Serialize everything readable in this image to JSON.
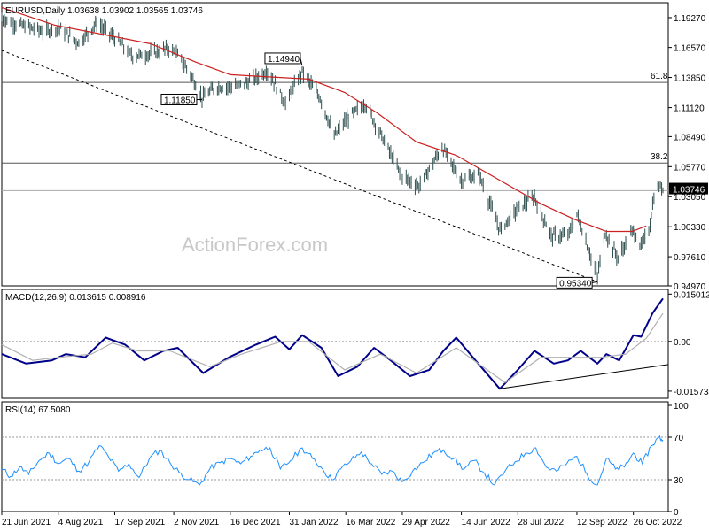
{
  "chart_data": [
    {
      "type": "candlestick",
      "panel": "price",
      "header": "EURUSD,Daily  1.03638 1.03902 1.03565 1.03746",
      "watermark": "ActionForex.com",
      "ylim": [
        0.9497,
        1.2063
      ],
      "y_ticks": [
        "1.19270",
        "1.16570",
        "1.13850",
        "1.11120",
        "1.08490",
        "1.05770",
        "1.03050",
        "1.00330",
        "0.97610",
        "0.94970"
      ],
      "current_price": {
        "label": "1.03746",
        "value": 1.03746
      },
      "levels": [
        {
          "label": "61.8",
          "value": 1.134
        },
        {
          "label": "38.2",
          "value": 1.061
        },
        {
          "label": "",
          "value": 1.036
        }
      ],
      "annotations": [
        {
          "label": "1.14940",
          "date": "2022-02-10",
          "value": 1.1494
        },
        {
          "label": "1.11850",
          "date": "2021-11-24",
          "value": 1.1185
        },
        {
          "label": "0.95340",
          "date": "2022-09-28",
          "value": 0.9534
        }
      ],
      "trendline": {
        "style": "dashed",
        "from": [
          "2021-06-21",
          1.163
        ],
        "to": [
          "2022-09-28",
          0.9534
        ]
      },
      "moving_average_points": [
        [
          "2021-06-21",
          1.202
        ],
        [
          "2021-08-01",
          1.186
        ],
        [
          "2021-09-10",
          1.177
        ],
        [
          "2021-10-15",
          1.169
        ],
        [
          "2021-11-20",
          1.152
        ],
        [
          "2021-12-16",
          1.141
        ],
        [
          "2022-01-15",
          1.139
        ],
        [
          "2022-02-15",
          1.137
        ],
        [
          "2022-03-15",
          1.125
        ],
        [
          "2022-04-10",
          1.106
        ],
        [
          "2022-05-10",
          1.08
        ],
        [
          "2022-06-10",
          1.068
        ],
        [
          "2022-07-10",
          1.048
        ],
        [
          "2022-08-15",
          1.024
        ],
        [
          "2022-09-10",
          1.01
        ],
        [
          "2022-10-05",
          0.999
        ],
        [
          "2022-10-25",
          0.999
        ],
        [
          "2022-11-05",
          1.004
        ]
      ],
      "price_points": [
        [
          "2021-06-21",
          1.192
        ],
        [
          "2021-07-05",
          1.186
        ],
        [
          "2021-07-25",
          1.18
        ],
        [
          "2021-08-04",
          1.184
        ],
        [
          "2021-08-20",
          1.17
        ],
        [
          "2021-09-03",
          1.188
        ],
        [
          "2021-09-17",
          1.174
        ],
        [
          "2021-10-01",
          1.158
        ],
        [
          "2021-10-15",
          1.16
        ],
        [
          "2021-10-29",
          1.165
        ],
        [
          "2021-11-05",
          1.158
        ],
        [
          "2021-11-15",
          1.142
        ],
        [
          "2021-11-24",
          1.12
        ],
        [
          "2021-12-05",
          1.13
        ],
        [
          "2021-12-16",
          1.13
        ],
        [
          "2022-01-01",
          1.135
        ],
        [
          "2022-01-14",
          1.145
        ],
        [
          "2022-01-28",
          1.115
        ],
        [
          "2022-02-10",
          1.144
        ],
        [
          "2022-02-24",
          1.12
        ],
        [
          "2022-03-07",
          1.085
        ],
        [
          "2022-03-16",
          1.1
        ],
        [
          "2022-03-31",
          1.115
        ],
        [
          "2022-04-14",
          1.083
        ],
        [
          "2022-04-28",
          1.05
        ],
        [
          "2022-05-12",
          1.04
        ],
        [
          "2022-05-30",
          1.075
        ],
        [
          "2022-06-14",
          1.045
        ],
        [
          "2022-06-28",
          1.05
        ],
        [
          "2022-07-14",
          1.0
        ],
        [
          "2022-07-28",
          1.02
        ],
        [
          "2022-08-10",
          1.03
        ],
        [
          "2022-08-23",
          0.995
        ],
        [
          "2022-09-05",
          0.995
        ],
        [
          "2022-09-12",
          1.015
        ],
        [
          "2022-09-28",
          0.958
        ],
        [
          "2022-10-04",
          0.998
        ],
        [
          "2022-10-14",
          0.975
        ],
        [
          "2022-10-26",
          1.0
        ],
        [
          "2022-11-01",
          0.985
        ],
        [
          "2022-11-07",
          1.0
        ],
        [
          "2022-11-11",
          1.03
        ],
        [
          "2022-11-15",
          1.04
        ],
        [
          "2022-11-18",
          1.0375
        ]
      ],
      "x_ticks": [
        "21 Jun 2021",
        "4 Aug 2021",
        "17 Sep 2021",
        "2 Nov 2021",
        "16 Dec 2021",
        "31 Jan 2022",
        "16 Mar 2022",
        "29 Apr 2022",
        "14 Jun 2022",
        "28 Jul 2022",
        "12 Sep 2022",
        "26 Oct 2022"
      ],
      "x_tick_dates": [
        "2021-06-21",
        "2021-08-04",
        "2021-09-17",
        "2021-11-02",
        "2021-12-16",
        "2022-01-31",
        "2022-03-16",
        "2022-04-29",
        "2022-06-14",
        "2022-07-28",
        "2022-09-12",
        "2022-10-26"
      ],
      "x_range": [
        "2021-06-21",
        "2022-11-18"
      ]
    },
    {
      "type": "line",
      "panel": "macd",
      "header": "MACD(12,26,9) 0.013615 0.008916",
      "ylim": [
        -0.018,
        0.0165
      ],
      "y_ticks": [
        "0.015012",
        "0.00",
        "-0.015734"
      ],
      "y_tick_values": [
        0.015012,
        0.0,
        -0.015734
      ],
      "zero_line": 0.0,
      "trendline": {
        "from": [
          "2022-07-14",
          -0.015
        ],
        "to": [
          "2022-11-18",
          -0.0073
        ]
      },
      "series": [
        {
          "name": "",
          "role": "macd",
          "points": [
            [
              "2021-06-21",
              -0.004
            ],
            [
              "2021-07-10",
              -0.007
            ],
            [
              "2021-07-30",
              -0.006
            ],
            [
              "2021-08-10",
              -0.004
            ],
            [
              "2021-08-25",
              -0.005
            ],
            [
              "2021-09-10",
              0.0012
            ],
            [
              "2021-09-25",
              -0.001
            ],
            [
              "2021-10-10",
              -0.006
            ],
            [
              "2021-10-25",
              -0.003
            ],
            [
              "2021-11-05",
              -0.002
            ],
            [
              "2021-11-25",
              -0.01
            ],
            [
              "2021-12-15",
              -0.005
            ],
            [
              "2022-01-05",
              -0.001
            ],
            [
              "2022-01-20",
              0.0015
            ],
            [
              "2022-01-31",
              -0.0025
            ],
            [
              "2022-02-10",
              0.002
            ],
            [
              "2022-02-25",
              -0.002
            ],
            [
              "2022-03-10",
              -0.011
            ],
            [
              "2022-03-25",
              -0.008
            ],
            [
              "2022-04-07",
              -0.002
            ],
            [
              "2022-04-20",
              -0.006
            ],
            [
              "2022-05-05",
              -0.011
            ],
            [
              "2022-05-20",
              -0.009
            ],
            [
              "2022-05-31",
              -0.003
            ],
            [
              "2022-06-10",
              0.0012
            ],
            [
              "2022-06-25",
              -0.006
            ],
            [
              "2022-07-14",
              -0.015
            ],
            [
              "2022-07-28",
              -0.009
            ],
            [
              "2022-08-10",
              -0.003
            ],
            [
              "2022-08-25",
              -0.007
            ],
            [
              "2022-09-05",
              -0.006
            ],
            [
              "2022-09-15",
              -0.003
            ],
            [
              "2022-09-28",
              -0.007
            ],
            [
              "2022-10-05",
              -0.004
            ],
            [
              "2022-10-15",
              -0.006
            ],
            [
              "2022-10-26",
              0.002
            ],
            [
              "2022-11-01",
              0.0015
            ],
            [
              "2022-11-10",
              0.009
            ],
            [
              "2022-11-18",
              0.0136
            ]
          ]
        },
        {
          "name": "",
          "role": "signal",
          "points": [
            [
              "2021-06-21",
              -0.001
            ],
            [
              "2021-07-15",
              -0.006
            ],
            [
              "2021-08-05",
              -0.005
            ],
            [
              "2021-08-30",
              -0.004
            ],
            [
              "2021-09-15",
              -0.0005
            ],
            [
              "2021-10-05",
              -0.003
            ],
            [
              "2021-10-30",
              -0.003
            ],
            [
              "2021-11-30",
              -0.008
            ],
            [
              "2021-12-25",
              -0.004
            ],
            [
              "2022-01-25",
              0.0
            ],
            [
              "2022-02-15",
              0.0
            ],
            [
              "2022-03-15",
              -0.009
            ],
            [
              "2022-04-12",
              -0.004
            ],
            [
              "2022-05-10",
              -0.01
            ],
            [
              "2022-06-10",
              -0.002
            ],
            [
              "2022-07-18",
              -0.013
            ],
            [
              "2022-08-15",
              -0.005
            ],
            [
              "2022-09-10",
              -0.005
            ],
            [
              "2022-10-01",
              -0.005
            ],
            [
              "2022-10-20",
              -0.004
            ],
            [
              "2022-11-05",
              0.001
            ],
            [
              "2022-11-18",
              0.0089
            ]
          ]
        }
      ]
    },
    {
      "type": "line",
      "panel": "rsi",
      "header": "RSI(14) 67.5080",
      "ylim": [
        0,
        100
      ],
      "y_ticks": [
        "100",
        "70",
        "30",
        "0"
      ],
      "y_tick_values": [
        100,
        70,
        30,
        0
      ],
      "levels": [
        70,
        30
      ],
      "series": [
        {
          "name": "",
          "points": [
            [
              "2021-06-21",
              40
            ],
            [
              "2021-06-28",
              33
            ],
            [
              "2021-07-05",
              42
            ],
            [
              "2021-07-12",
              35
            ],
            [
              "2021-07-20",
              48
            ],
            [
              "2021-07-28",
              55
            ],
            [
              "2021-08-04",
              45
            ],
            [
              "2021-08-12",
              50
            ],
            [
              "2021-08-20",
              38
            ],
            [
              "2021-08-28",
              47
            ],
            [
              "2021-09-05",
              62
            ],
            [
              "2021-09-12",
              52
            ],
            [
              "2021-09-20",
              38
            ],
            [
              "2021-09-28",
              45
            ],
            [
              "2021-10-06",
              32
            ],
            [
              "2021-10-14",
              50
            ],
            [
              "2021-10-22",
              58
            ],
            [
              "2021-10-30",
              46
            ],
            [
              "2021-11-06",
              37
            ],
            [
              "2021-11-14",
              30
            ],
            [
              "2021-11-22",
              25
            ],
            [
              "2021-11-30",
              40
            ],
            [
              "2021-12-08",
              46
            ],
            [
              "2021-12-16",
              50
            ],
            [
              "2021-12-24",
              45
            ],
            [
              "2022-01-01",
              52
            ],
            [
              "2022-01-08",
              58
            ],
            [
              "2022-01-16",
              60
            ],
            [
              "2022-01-24",
              40
            ],
            [
              "2022-02-01",
              48
            ],
            [
              "2022-02-10",
              60
            ],
            [
              "2022-02-18",
              50
            ],
            [
              "2022-02-26",
              40
            ],
            [
              "2022-03-05",
              30
            ],
            [
              "2022-03-12",
              40
            ],
            [
              "2022-03-20",
              48
            ],
            [
              "2022-03-28",
              56
            ],
            [
              "2022-04-05",
              45
            ],
            [
              "2022-04-13",
              35
            ],
            [
              "2022-04-21",
              38
            ],
            [
              "2022-04-29",
              28
            ],
            [
              "2022-05-07",
              38
            ],
            [
              "2022-05-15",
              46
            ],
            [
              "2022-05-23",
              55
            ],
            [
              "2022-05-31",
              58
            ],
            [
              "2022-06-08",
              50
            ],
            [
              "2022-06-16",
              40
            ],
            [
              "2022-06-24",
              48
            ],
            [
              "2022-07-02",
              36
            ],
            [
              "2022-07-10",
              25
            ],
            [
              "2022-07-18",
              38
            ],
            [
              "2022-07-26",
              47
            ],
            [
              "2022-08-03",
              55
            ],
            [
              "2022-08-11",
              60
            ],
            [
              "2022-08-19",
              42
            ],
            [
              "2022-08-27",
              38
            ],
            [
              "2022-09-04",
              45
            ],
            [
              "2022-09-12",
              52
            ],
            [
              "2022-09-20",
              35
            ],
            [
              "2022-09-28",
              25
            ],
            [
              "2022-10-05",
              50
            ],
            [
              "2022-10-12",
              40
            ],
            [
              "2022-10-19",
              42
            ],
            [
              "2022-10-26",
              55
            ],
            [
              "2022-11-02",
              45
            ],
            [
              "2022-11-09",
              62
            ],
            [
              "2022-11-15",
              70
            ],
            [
              "2022-11-18",
              67.5
            ]
          ]
        }
      ]
    }
  ]
}
